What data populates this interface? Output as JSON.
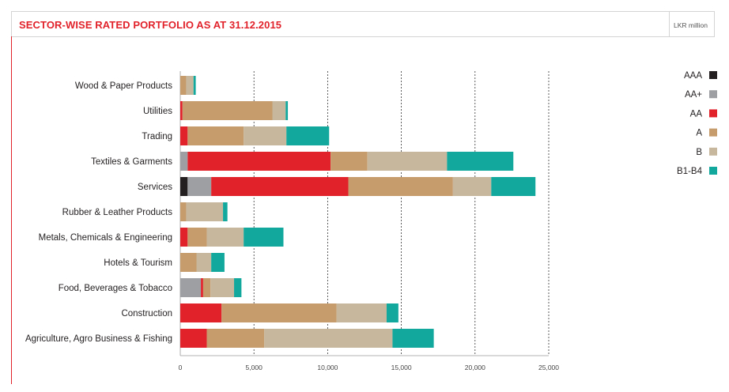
{
  "header": {
    "title": "SECTOR-WISE RATED PORTFOLIO AS AT 31.12.2015",
    "unit": "LKR million"
  },
  "colors": {
    "AAA": "#231f20",
    "AA+": "#9d9fa2",
    "AA": "#e1222b",
    "A": "#c69c6d",
    "B": "#c7b79c",
    "B1-B4": "#12a89d"
  },
  "chart_data": {
    "type": "bar",
    "orientation": "horizontal",
    "stacked": true,
    "title": "SECTOR-WISE RATED PORTFOLIO AS AT 31.12.2015",
    "unit": "LKR million",
    "categories": [
      "Wood & Paper Products",
      "Utilities",
      "Trading",
      "Textiles & Garments",
      "Services",
      "Rubber & Leather Products",
      "Metals, Chemicals & Engineering",
      "Hotels & Tourism",
      "Food, Beverages & Tobacco",
      "Construction",
      "Agriculture, Agro Business & Fishing"
    ],
    "series": [
      {
        "name": "AAA",
        "values": [
          0,
          0,
          0,
          0,
          500,
          0,
          0,
          0,
          0,
          0,
          0
        ]
      },
      {
        "name": "AA+",
        "values": [
          0,
          0,
          0,
          500,
          1600,
          0,
          0,
          0,
          1400,
          0,
          0
        ]
      },
      {
        "name": "AA",
        "values": [
          0,
          150,
          500,
          9700,
          9300,
          0,
          500,
          0,
          150,
          2800,
          1800
        ]
      },
      {
        "name": "A",
        "values": [
          400,
          6100,
          3800,
          2500,
          7100,
          400,
          1300,
          1100,
          500,
          7800,
          3900
        ]
      },
      {
        "name": "B",
        "values": [
          500,
          900,
          2900,
          5400,
          2600,
          2500,
          2500,
          1000,
          1600,
          3400,
          8700
        ]
      },
      {
        "name": "B1-B4",
        "values": [
          150,
          150,
          2900,
          4500,
          3000,
          300,
          2700,
          900,
          500,
          800,
          2800
        ]
      }
    ],
    "xlim": [
      0,
      25000
    ],
    "xticks": [
      "0",
      "5,000",
      "10,000",
      "15,000",
      "20,000",
      "25,000"
    ],
    "grid": "vertical dashed lines at each tick",
    "legend": "right"
  }
}
